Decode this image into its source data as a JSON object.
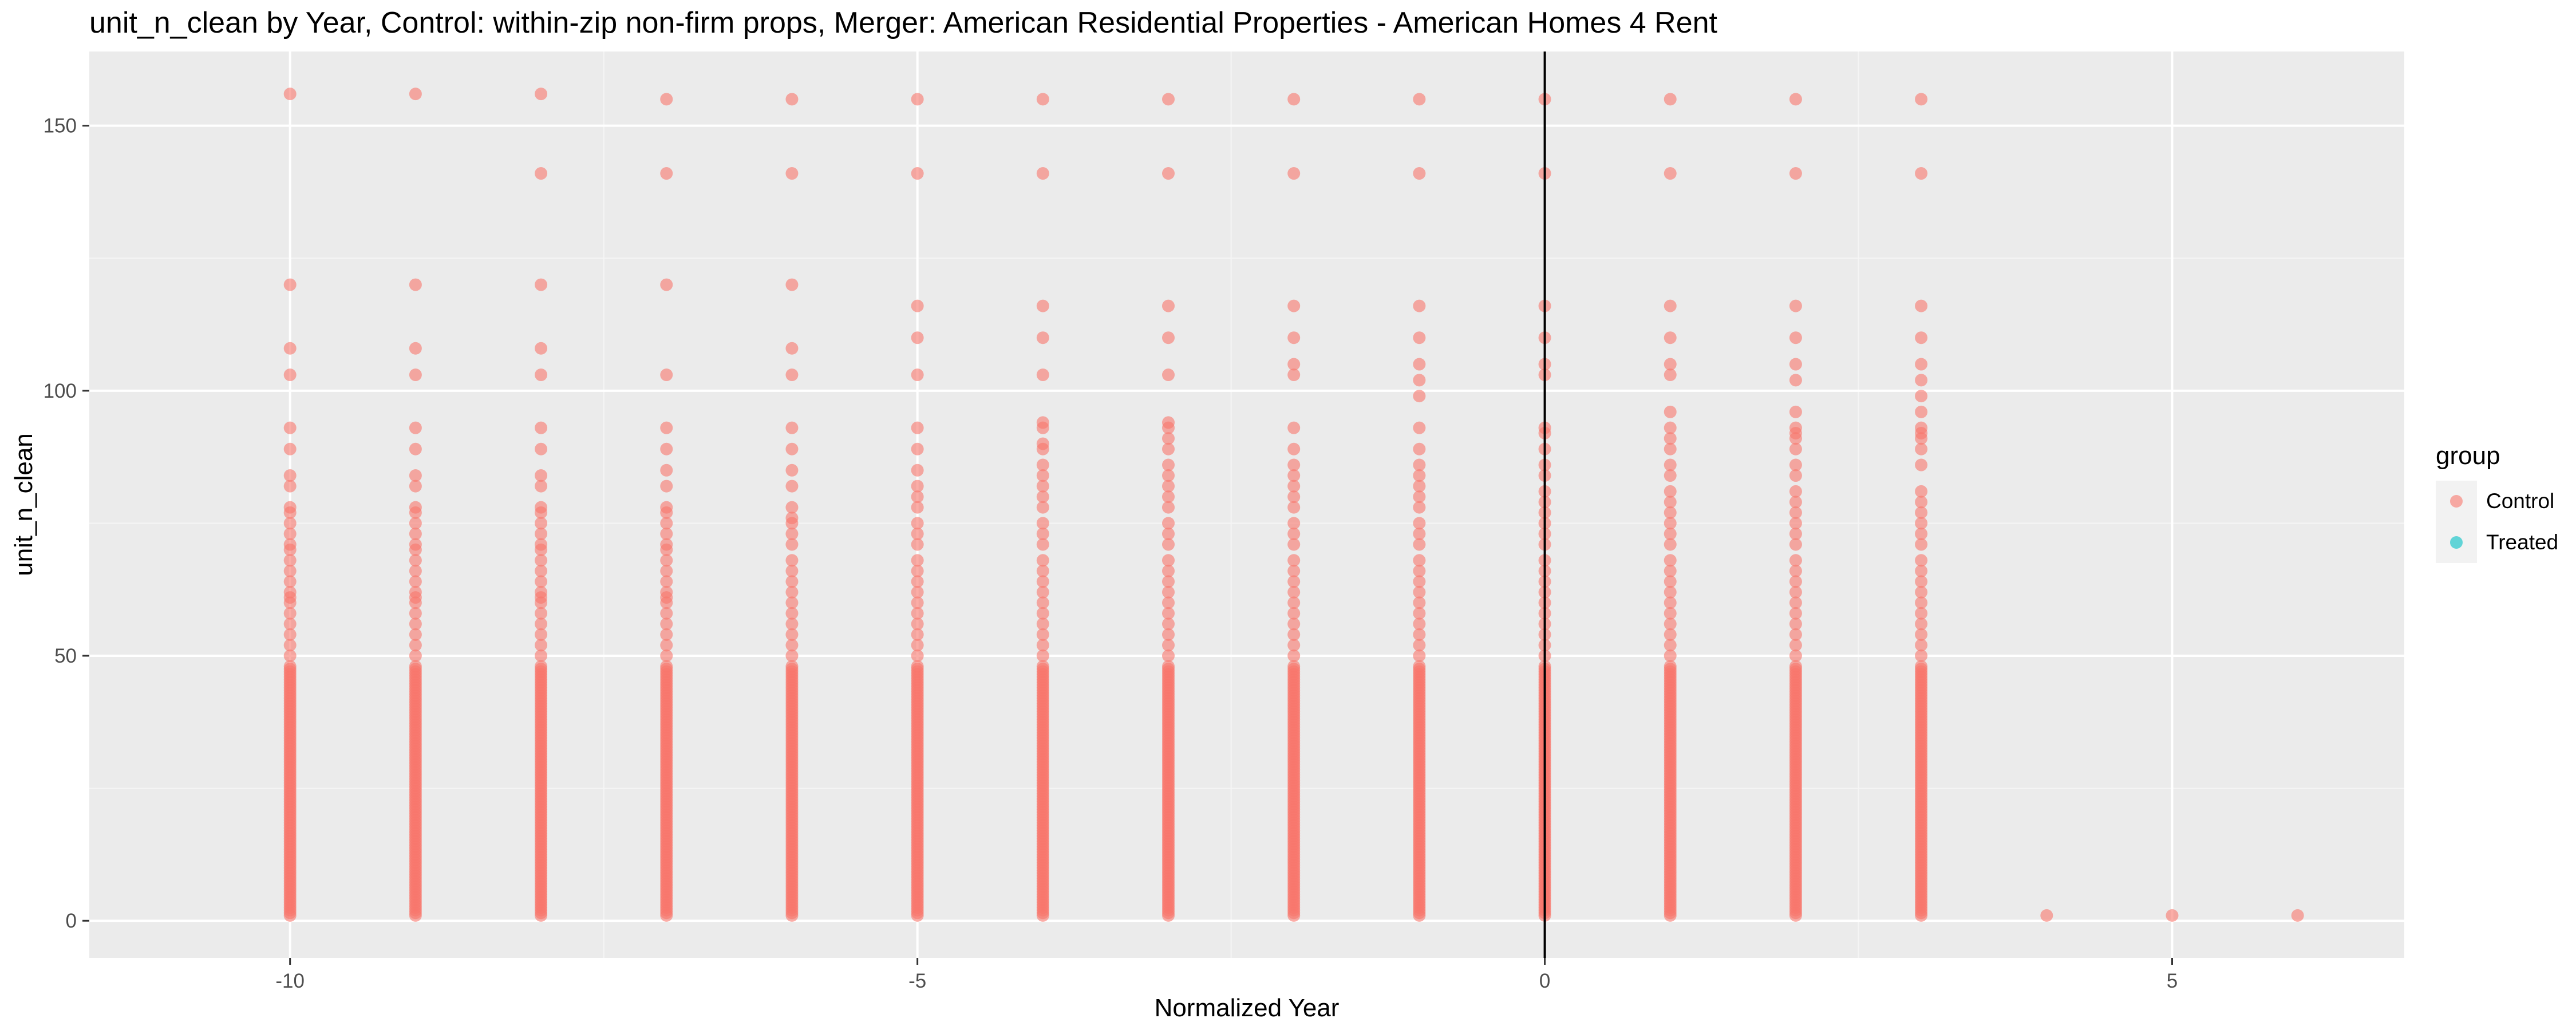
{
  "chart_data": {
    "type": "scatter",
    "title": "unit_n_clean by Year, Control: within-zip non-firm props, Merger: American Residential Properties - American Homes 4 Rent",
    "xlabel": "Normalized Year",
    "ylabel": "unit_n_clean",
    "xlim": [
      -11.6,
      6.85
    ],
    "ylim": [
      -7,
      164
    ],
    "x_ticks": [
      -10,
      -5,
      0,
      5
    ],
    "x_tick_labels": [
      "-10",
      "-5",
      "0",
      "5"
    ],
    "y_ticks": [
      0,
      50,
      100,
      150
    ],
    "y_tick_labels": [
      "0",
      "50",
      "100",
      "150"
    ],
    "vline_x": 0,
    "grid": true,
    "legend": {
      "title": "group",
      "position": "right",
      "entries": [
        {
          "label": "Control",
          "color": "#F8766D"
        },
        {
          "label": "Treated",
          "color": "#00BFC4"
        }
      ]
    },
    "series": [
      {
        "name": "Control",
        "color": "#F8766D",
        "points": [
          {
            "x": -10,
            "y": [
              156,
              120,
              108,
              103,
              93,
              89,
              84,
              82,
              78,
              77,
              75,
              73,
              71,
              70,
              68,
              66,
              64,
              62,
              61,
              60,
              58,
              56,
              54,
              52,
              50
            ]
          },
          {
            "x": -9,
            "y": [
              156,
              120,
              108,
              103,
              93,
              89,
              84,
              82,
              78,
              77,
              75,
              73,
              71,
              70,
              68,
              66,
              64,
              62,
              61,
              60,
              58,
              56,
              54,
              52,
              50
            ]
          },
          {
            "x": -8,
            "y": [
              156,
              141,
              120,
              108,
              103,
              93,
              89,
              84,
              82,
              78,
              77,
              75,
              73,
              71,
              70,
              68,
              66,
              64,
              62,
              61,
              60,
              58,
              56,
              54,
              52,
              50
            ]
          },
          {
            "x": -7,
            "y": [
              155,
              141,
              120,
              103,
              93,
              89,
              85,
              82,
              78,
              77,
              75,
              73,
              71,
              70,
              68,
              66,
              64,
              62,
              61,
              60,
              58,
              56,
              54,
              52,
              50
            ]
          },
          {
            "x": -6,
            "y": [
              155,
              141,
              120,
              108,
              103,
              93,
              89,
              85,
              82,
              78,
              76,
              75,
              73,
              71,
              68,
              66,
              64,
              62,
              60,
              58,
              56,
              54,
              52,
              50
            ]
          },
          {
            "x": -5,
            "y": [
              155,
              141,
              116,
              110,
              103,
              93,
              89,
              85,
              82,
              80,
              78,
              75,
              73,
              71,
              68,
              66,
              64,
              62,
              60,
              58,
              56,
              54,
              52,
              50
            ]
          },
          {
            "x": -4,
            "y": [
              155,
              141,
              116,
              110,
              103,
              94,
              93,
              90,
              89,
              86,
              84,
              82,
              80,
              78,
              75,
              73,
              71,
              68,
              66,
              64,
              62,
              60,
              58,
              56,
              54,
              52,
              50
            ]
          },
          {
            "x": -3,
            "y": [
              155,
              141,
              116,
              110,
              103,
              94,
              93,
              91,
              89,
              86,
              84,
              82,
              80,
              78,
              75,
              73,
              71,
              68,
              66,
              64,
              62,
              60,
              58,
              56,
              54,
              52,
              50
            ]
          },
          {
            "x": -2,
            "y": [
              155,
              141,
              116,
              110,
              105,
              103,
              93,
              89,
              86,
              84,
              82,
              80,
              78,
              75,
              73,
              71,
              68,
              66,
              64,
              62,
              60,
              58,
              56,
              54,
              52,
              50
            ]
          },
          {
            "x": -1,
            "y": [
              155,
              141,
              116,
              110,
              105,
              102,
              99,
              93,
              89,
              86,
              84,
              82,
              80,
              78,
              75,
              73,
              71,
              68,
              66,
              64,
              62,
              60,
              58,
              56,
              54,
              52,
              50
            ]
          },
          {
            "x": 0,
            "y": [
              155,
              141,
              116,
              110,
              105,
              103,
              93,
              92,
              89,
              86,
              84,
              81,
              79,
              77,
              75,
              73,
              71,
              68,
              66,
              64,
              62,
              60,
              58,
              56,
              54,
              52,
              50
            ]
          },
          {
            "x": 1,
            "y": [
              155,
              141,
              116,
              110,
              105,
              103,
              96,
              93,
              91,
              89,
              86,
              84,
              81,
              79,
              77,
              75,
              73,
              71,
              68,
              66,
              64,
              62,
              60,
              58,
              56,
              54,
              52,
              50
            ]
          },
          {
            "x": 2,
            "y": [
              155,
              141,
              116,
              110,
              105,
              102,
              96,
              93,
              92,
              91,
              89,
              86,
              84,
              81,
              79,
              77,
              75,
              73,
              71,
              68,
              66,
              64,
              62,
              60,
              58,
              56,
              54,
              52,
              50
            ]
          },
          {
            "x": 3,
            "y": [
              155,
              141,
              116,
              110,
              105,
              102,
              99,
              96,
              93,
              92,
              91,
              89,
              86,
              81,
              79,
              77,
              75,
              73,
              71,
              68,
              66,
              64,
              62,
              60,
              58,
              56,
              54,
              52,
              50
            ]
          },
          {
            "x": 4,
            "y": [
              1
            ]
          },
          {
            "x": 5,
            "y": [
              1
            ]
          },
          {
            "x": 6,
            "y": [
              1
            ]
          }
        ],
        "dense_range": {
          "x": [
            -10,
            -9,
            -8,
            -7,
            -6,
            -5,
            -4,
            -3,
            -2,
            -1,
            0,
            1,
            2,
            3
          ],
          "y_from": 1,
          "y_to": 48
        }
      },
      {
        "name": "Treated",
        "color": "#00BFC4",
        "points": []
      }
    ]
  }
}
